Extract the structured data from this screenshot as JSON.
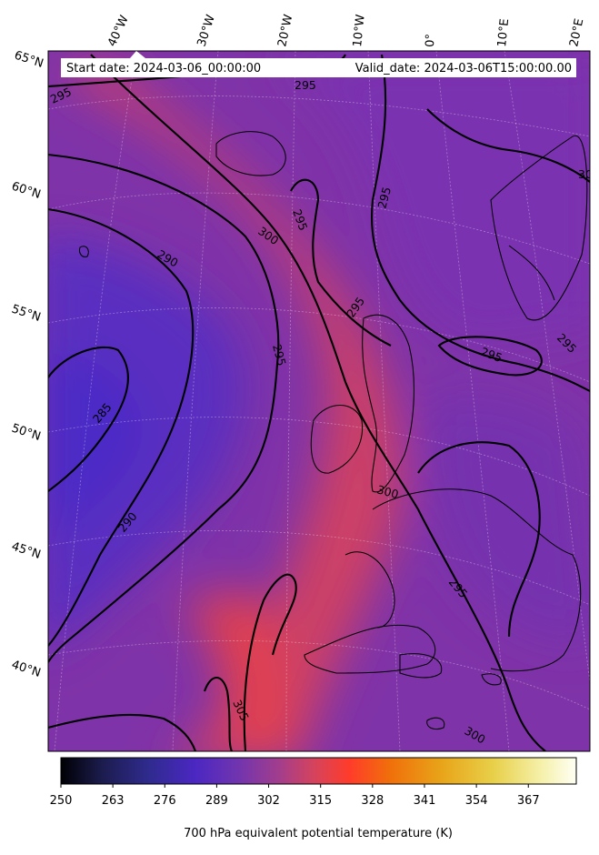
{
  "map": {
    "start_date": "Start date: 2024-03-06_00:00:00",
    "valid_date": "Valid_date: 2024-03-06T15:00:00.00",
    "lon_labels": [
      "40°W",
      "30°W",
      "20°W",
      "10°W",
      "0°",
      "10°E",
      "20°E"
    ],
    "lat_labels": [
      "65°N",
      "60°N",
      "55°N",
      "50°N",
      "45°N",
      "40°N"
    ],
    "contour_levels": [
      "285",
      "290",
      "295",
      "300",
      "305"
    ],
    "contour_labels": [
      "295",
      "295",
      "295",
      "300",
      "290",
      "295",
      "295",
      "295",
      "295",
      "295",
      "285",
      "290",
      "300",
      "295",
      "305",
      "300",
      "30"
    ]
  },
  "colorbar": {
    "ticks": [
      "250",
      "263",
      "276",
      "289",
      "302",
      "315",
      "328",
      "341",
      "354",
      "367"
    ],
    "label": "700 hPa equivalent potential temperature (K)",
    "colors": [
      "#000004",
      "#1c1c4e",
      "#2f2b8e",
      "#4b27c2",
      "#6f34b0",
      "#a03d8e",
      "#d4435e",
      "#ff3c2a",
      "#f0700a",
      "#e8a51a",
      "#e8d04a",
      "#f5f0a8",
      "#fffff4"
    ]
  }
}
